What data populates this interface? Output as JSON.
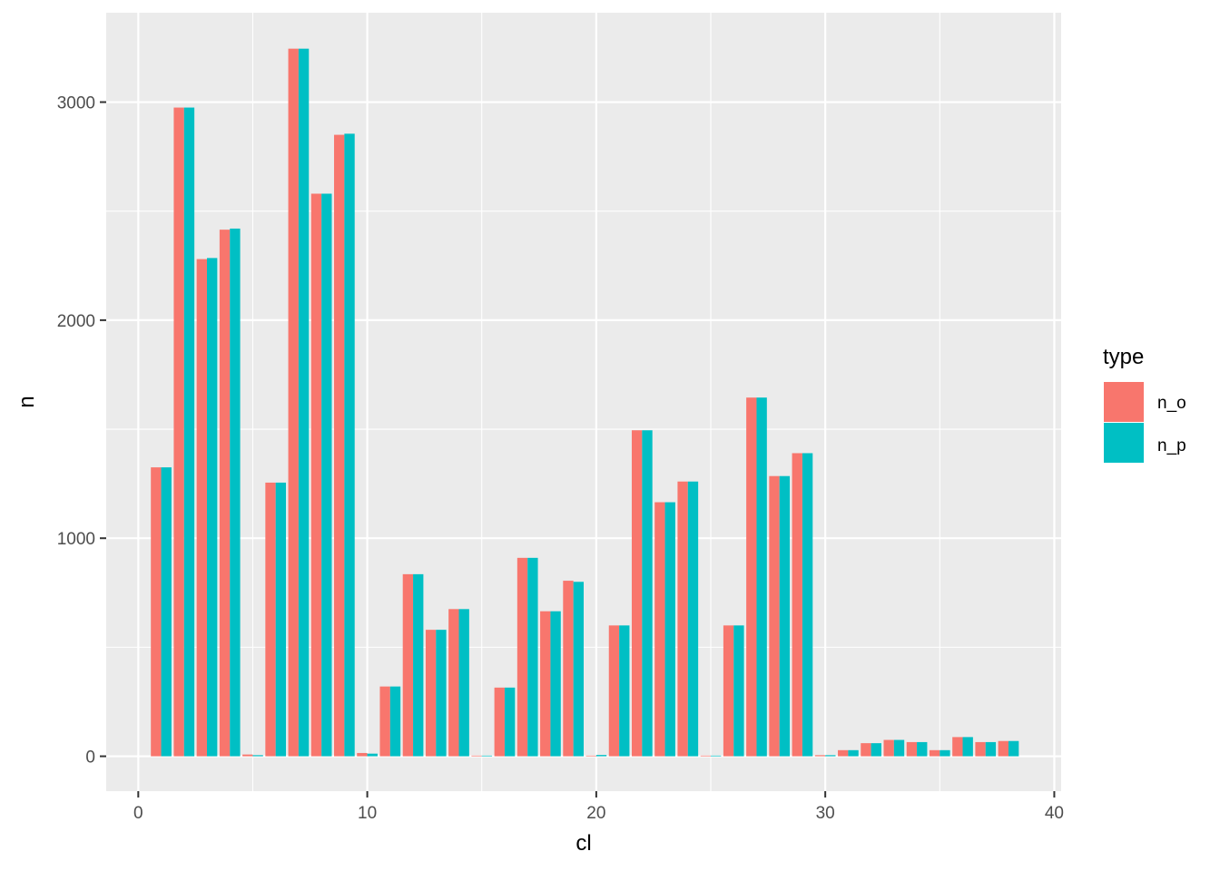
{
  "chart_data": {
    "type": "bar",
    "xlabel": "cl",
    "ylabel": "n",
    "xlim": [
      -1.4,
      40.3
    ],
    "ylim": [
      -160,
      3410
    ],
    "x_ticks": [
      0,
      10,
      20,
      30,
      40
    ],
    "x_tick_labels": [
      "0",
      "10",
      "20",
      "30",
      "40"
    ],
    "y_ticks": [
      0,
      1000,
      2000,
      3000
    ],
    "y_tick_labels": [
      "0",
      "1000",
      "2000",
      "3000"
    ],
    "grid": true,
    "legend": {
      "title": "type",
      "position": "right"
    },
    "x": [
      1,
      2,
      3,
      4,
      5,
      6,
      7,
      8,
      9,
      10,
      11,
      12,
      13,
      14,
      15,
      16,
      17,
      18,
      19,
      20,
      21,
      22,
      23,
      24,
      25,
      26,
      27,
      28,
      29,
      30,
      31,
      32,
      33,
      34,
      35,
      36,
      37,
      38
    ],
    "series": [
      {
        "name": "n_o",
        "color": "#F8766D",
        "values": [
          1325,
          2975,
          2280,
          2415,
          8,
          1255,
          3245,
          2580,
          2850,
          15,
          320,
          835,
          580,
          675,
          3,
          315,
          910,
          665,
          805,
          3,
          600,
          1495,
          1165,
          1260,
          3,
          600,
          1645,
          1285,
          1390,
          5,
          28,
          60,
          75,
          65,
          28,
          88,
          65,
          70
        ]
      },
      {
        "name": "n_p",
        "color": "#00BFC4",
        "values": [
          1325,
          2975,
          2285,
          2420,
          5,
          1255,
          3245,
          2580,
          2855,
          12,
          320,
          835,
          580,
          675,
          3,
          315,
          910,
          665,
          800,
          6,
          600,
          1495,
          1165,
          1260,
          3,
          600,
          1645,
          1285,
          1390,
          5,
          28,
          60,
          75,
          65,
          28,
          88,
          65,
          70
        ]
      }
    ]
  },
  "colors": {
    "panel": "#EBEBEB",
    "grid": "#FFFFFF",
    "tick": "#333333"
  }
}
